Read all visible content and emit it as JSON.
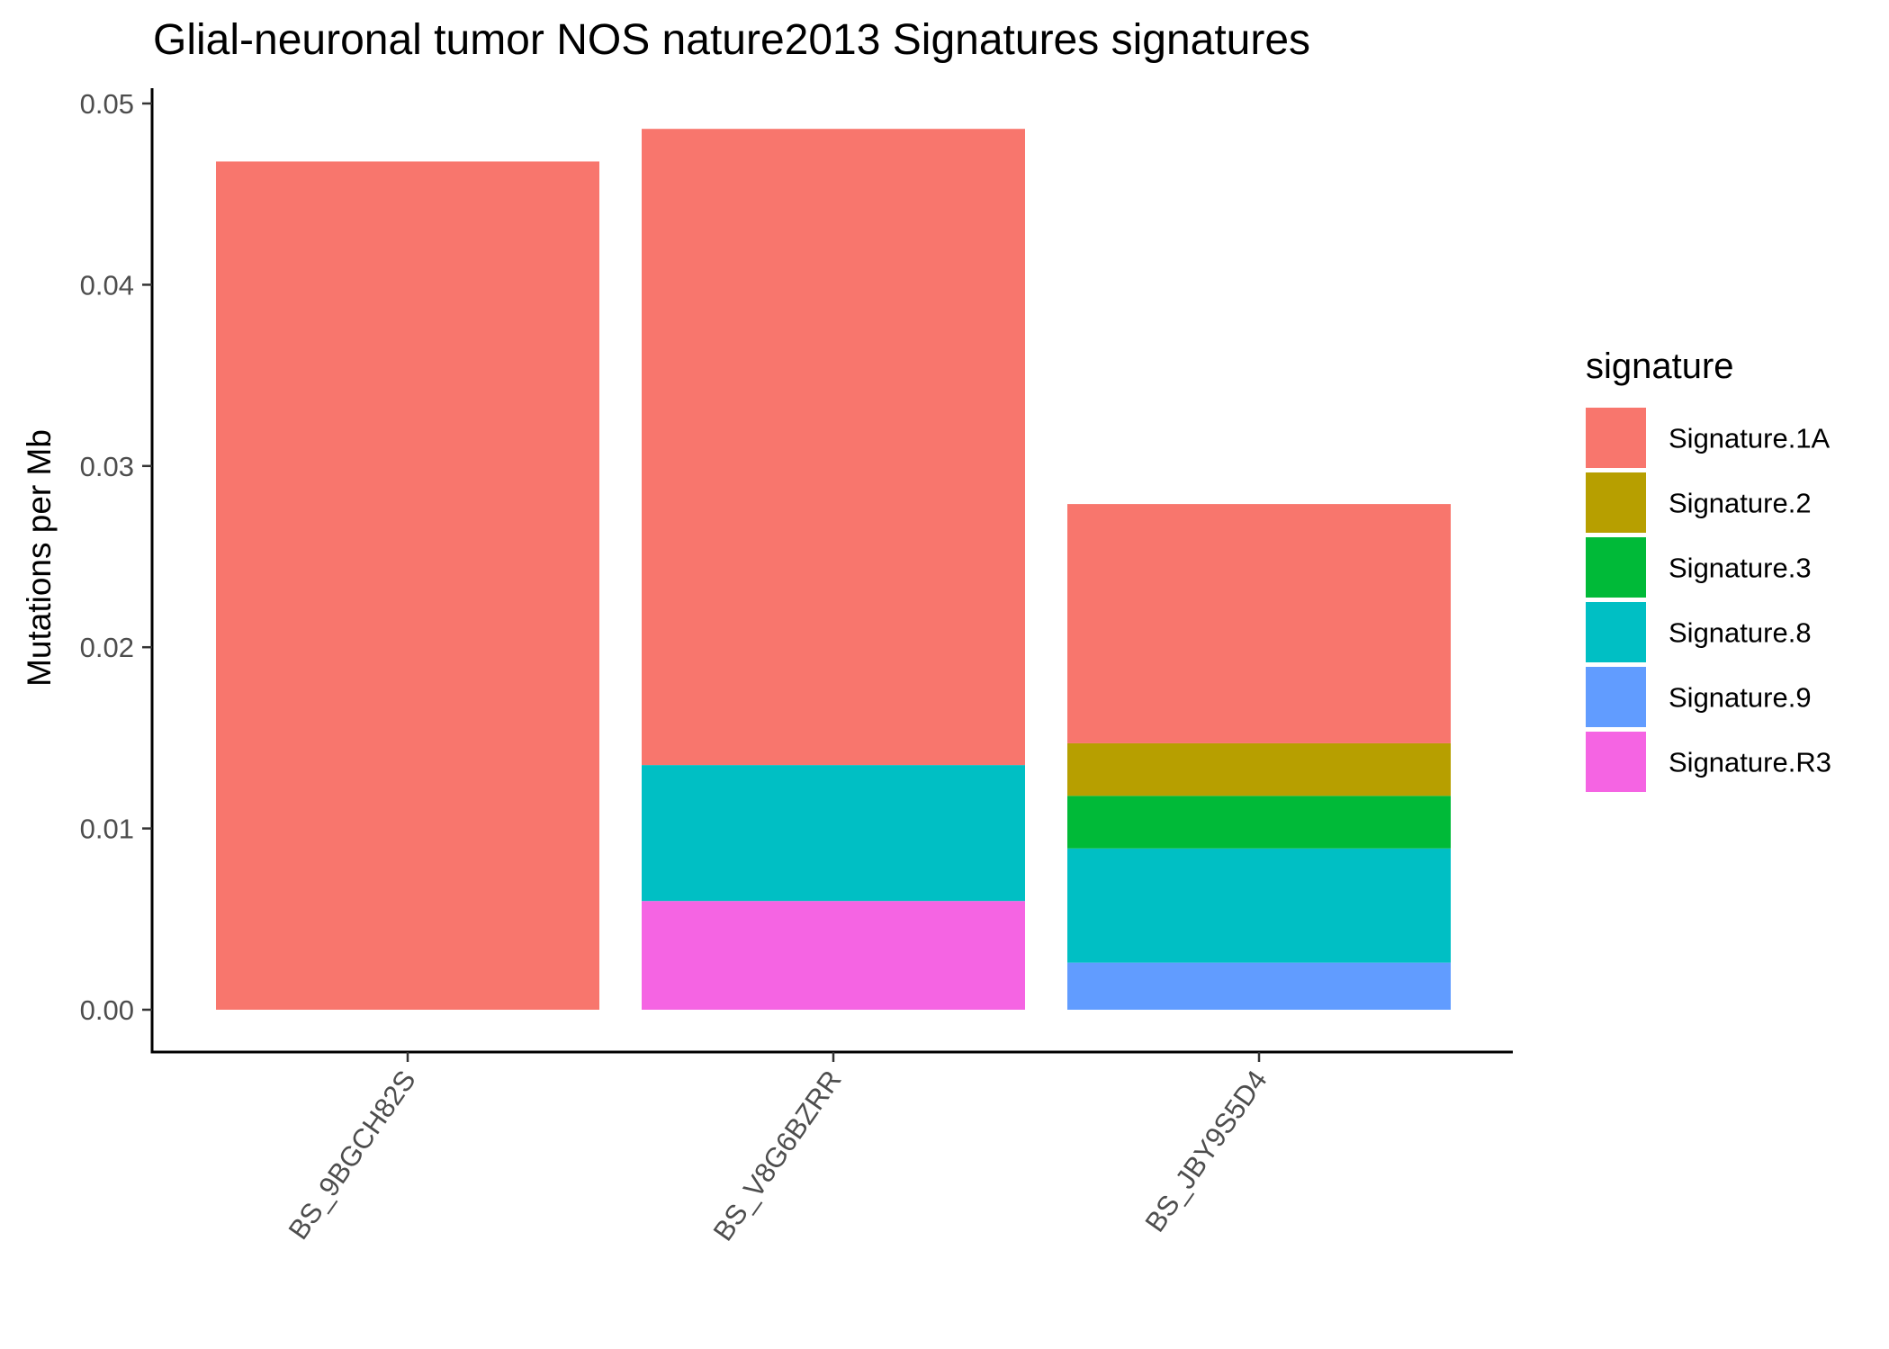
{
  "chart_data": {
    "type": "bar",
    "stacked": true,
    "title": "Glial-neuronal tumor NOS nature2013 Signatures signatures",
    "xlabel": "",
    "ylabel": "Mutations per Mb",
    "ylim": [
      0,
      0.05
    ],
    "yticks": [
      "0.00",
      "0.01",
      "0.02",
      "0.03",
      "0.04",
      "0.05"
    ],
    "categories": [
      "BS_9BGCH82S",
      "BS_V8G6BZRR",
      "BS_JBY9S5D4"
    ],
    "legend_title": "signature",
    "legend_position": "right",
    "grid": false,
    "series": [
      {
        "name": "Signature.1A",
        "color": "#F8766D",
        "values": [
          0.0468,
          0.0351,
          0.0132
        ]
      },
      {
        "name": "Signature.2",
        "color": "#B79F00",
        "values": [
          0,
          0,
          0.0029
        ]
      },
      {
        "name": "Signature.3",
        "color": "#00BA38",
        "values": [
          0,
          0,
          0.0029
        ]
      },
      {
        "name": "Signature.8",
        "color": "#00BFC4",
        "values": [
          0,
          0.0075,
          0.0063
        ]
      },
      {
        "name": "Signature.9",
        "color": "#619CFF",
        "values": [
          0,
          0,
          0.0026
        ]
      },
      {
        "name": "Signature.R3",
        "color": "#F564E3",
        "values": [
          0,
          0.006,
          0
        ]
      }
    ],
    "stack_order_bottom_to_top": [
      "Signature.9",
      "Signature.R3",
      "Signature.8",
      "Signature.3",
      "Signature.2",
      "Signature.1A"
    ]
  }
}
